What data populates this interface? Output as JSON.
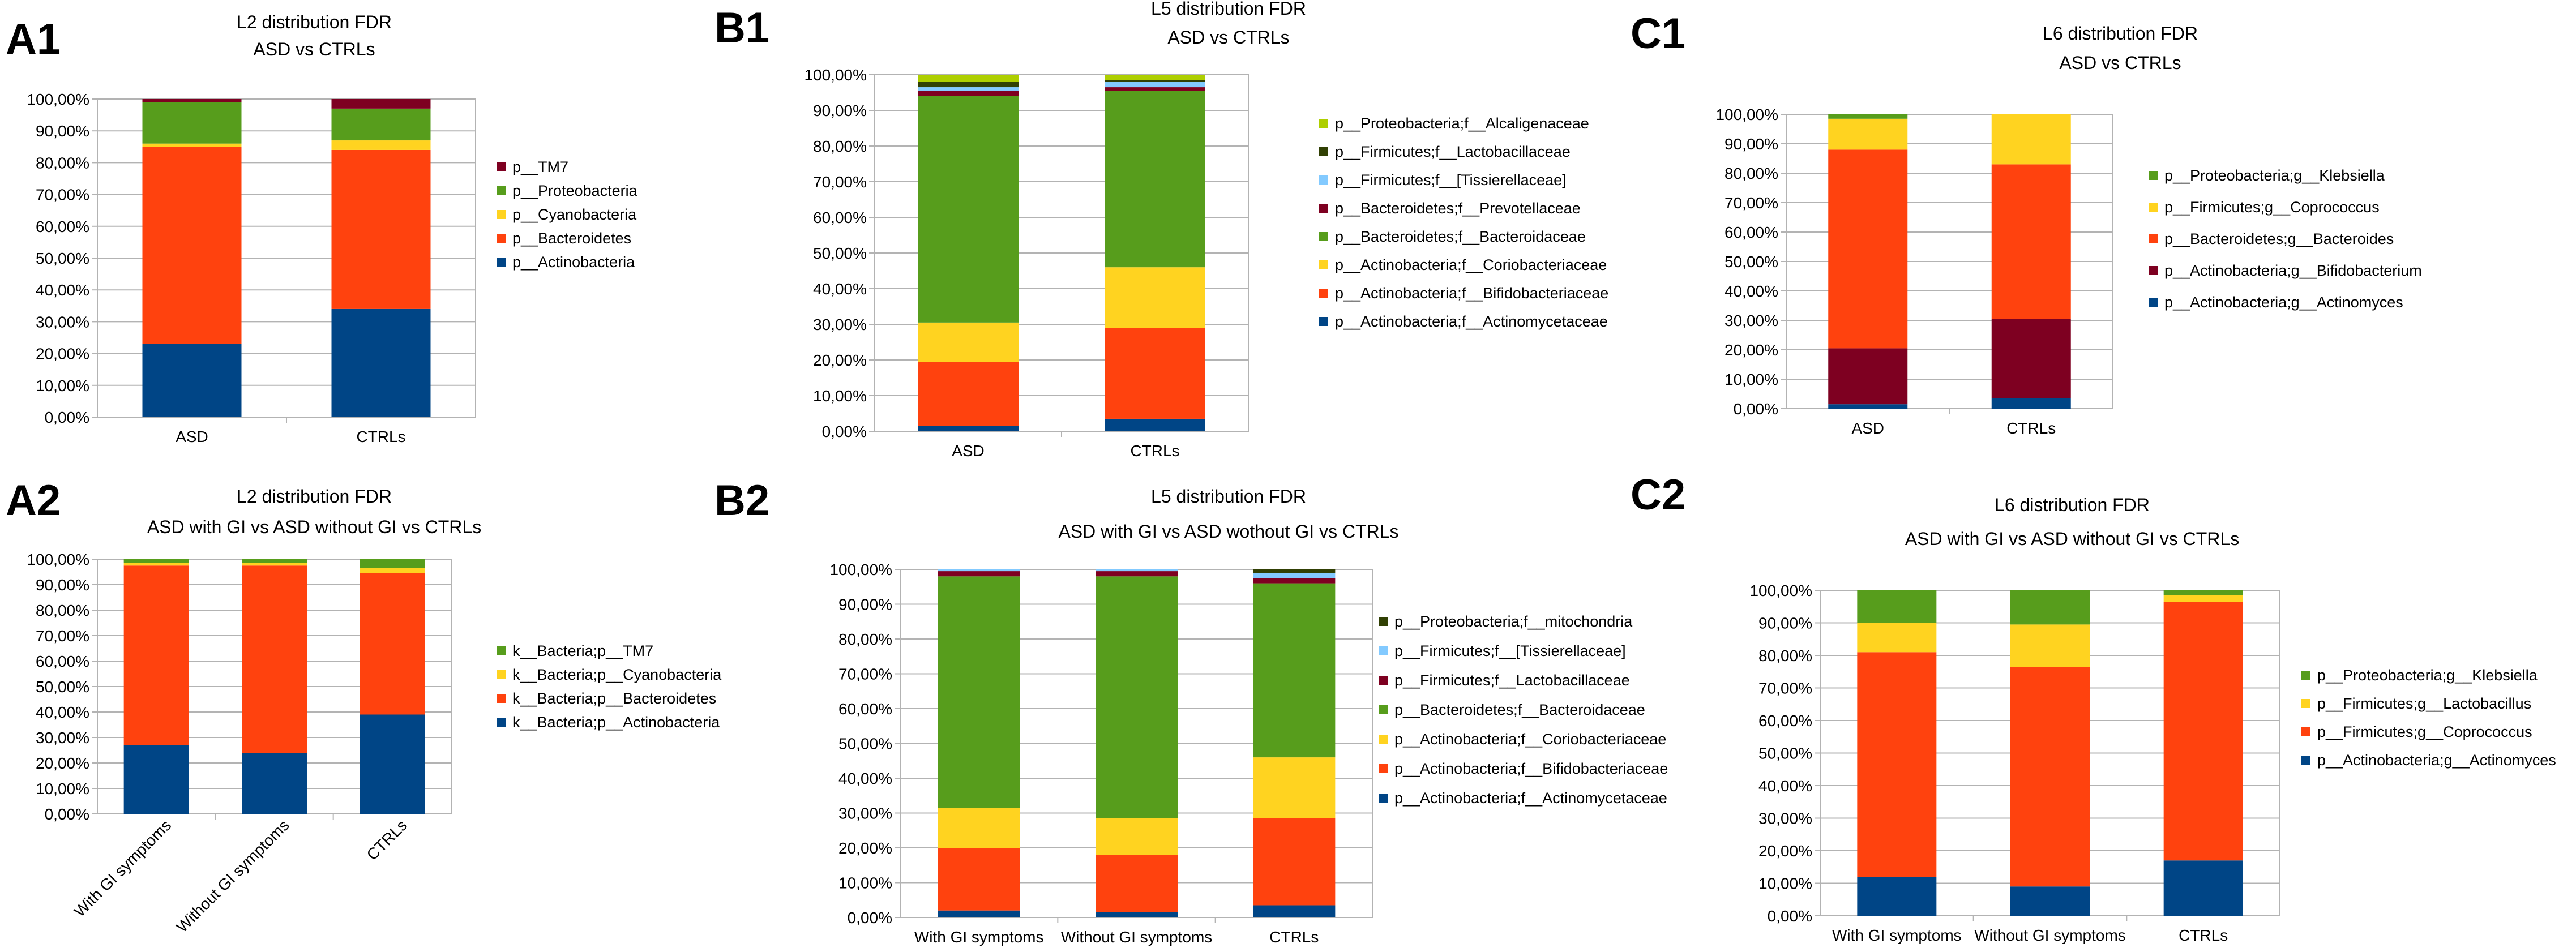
{
  "palette": {
    "grid": "#b3b3b3",
    "axis": "#b3b3b3"
  },
  "chart_data": [
    {
      "panel": "A1",
      "type": "bar",
      "stacked": true,
      "title": "L2 distribution FDR",
      "subtitle": "ASD vs CTRLs",
      "categories": [
        "ASD",
        "CTRLs"
      ],
      "yticks": [
        "0,00%",
        "10,00%",
        "20,00%",
        "30,00%",
        "40,00%",
        "50,00%",
        "60,00%",
        "70,00%",
        "80,00%",
        "90,00%",
        "100,00%"
      ],
      "ylim": [
        0,
        100
      ],
      "xlabel_rotated": false,
      "series": [
        {
          "name": "p__Actinobacteria",
          "color": "#004586",
          "values": [
            23,
            34
          ]
        },
        {
          "name": "p__Bacteroidetes",
          "color": "#ff420e",
          "values": [
            62,
            50
          ]
        },
        {
          "name": "p__Cyanobacteria",
          "color": "#ffd320",
          "values": [
            1,
            3
          ]
        },
        {
          "name": "p__Proteobacteria",
          "color": "#579d1c",
          "values": [
            13,
            10
          ]
        },
        {
          "name": "p__TM7",
          "color": "#7e0021",
          "values": [
            1,
            3
          ]
        }
      ]
    },
    {
      "panel": "B1",
      "type": "bar",
      "stacked": true,
      "title": "L5 distribution FDR",
      "subtitle": "ASD vs CTRLs",
      "categories": [
        "ASD",
        "CTRLs"
      ],
      "yticks": [
        "0,00%",
        "10,00%",
        "20,00%",
        "30,00%",
        "40,00%",
        "50,00%",
        "60,00%",
        "70,00%",
        "80,00%",
        "90,00%",
        "100,00%"
      ],
      "ylim": [
        0,
        100
      ],
      "xlabel_rotated": false,
      "series": [
        {
          "name": "p__Actinobacteria;f__Actinomycetaceae",
          "color": "#004586",
          "values": [
            1.5,
            3.5
          ]
        },
        {
          "name": "p__Actinobacteria;f__Bifidobacteriaceae",
          "color": "#ff420e",
          "values": [
            18,
            25.5
          ]
        },
        {
          "name": "p__Actinobacteria;f__Coriobacteriaceae",
          "color": "#ffd320",
          "values": [
            11,
            17
          ]
        },
        {
          "name": "p__Bacteroidetes;f__Bacteroidaceae",
          "color": "#579d1c",
          "values": [
            63.5,
            49.5
          ]
        },
        {
          "name": "p__Bacteroidetes;f__Prevotellaceae",
          "color": "#7e0021",
          "values": [
            1.5,
            1
          ]
        },
        {
          "name": "p__Firmicutes;f__[Tissierellaceae]",
          "color": "#83caff",
          "values": [
            1,
            1.5
          ]
        },
        {
          "name": "p__Firmicutes;f__Lactobacillaceae",
          "color": "#314004",
          "values": [
            1.5,
            0.5
          ]
        },
        {
          "name": "p__Proteobacteria;f__Alcaligenaceae",
          "color": "#aecf00",
          "values": [
            2,
            1.5
          ]
        }
      ]
    },
    {
      "panel": "C1",
      "type": "bar",
      "stacked": true,
      "title": "L6 distribution FDR",
      "subtitle": "ASD vs CTRLs",
      "categories": [
        "ASD",
        "CTRLs"
      ],
      "yticks": [
        "0,00%",
        "10,00%",
        "20,00%",
        "30,00%",
        "40,00%",
        "50,00%",
        "60,00%",
        "70,00%",
        "80,00%",
        "90,00%",
        "100,00%"
      ],
      "ylim": [
        0,
        100
      ],
      "xlabel_rotated": false,
      "series": [
        {
          "name": "p__Actinobacteria;g__Actinomyces",
          "color": "#004586",
          "values": [
            1.5,
            3.5
          ]
        },
        {
          "name": "p__Actinobacteria;g__Bifidobacterium",
          "color": "#7e0021",
          "values": [
            19,
            27
          ]
        },
        {
          "name": "p__Bacteroidetes;g__Bacteroides",
          "color": "#ff420e",
          "values": [
            67.5,
            52.5
          ]
        },
        {
          "name": "p__Firmicutes;g__Coprococcus",
          "color": "#ffd320",
          "values": [
            10.5,
            17
          ]
        },
        {
          "name": "p__Proteobacteria;g__Klebsiella",
          "color": "#579d1c",
          "values": [
            1.5,
            0
          ]
        }
      ]
    },
    {
      "panel": "A2",
      "type": "bar",
      "stacked": true,
      "title": "L2 distribution FDR",
      "subtitle": "ASD with GI vs ASD without GI vs CTRLs",
      "categories": [
        "With GI symptoms",
        "Without GI symptoms",
        "CTRLs"
      ],
      "yticks": [
        "0,00%",
        "10,00%",
        "20,00%",
        "30,00%",
        "40,00%",
        "50,00%",
        "60,00%",
        "70,00%",
        "80,00%",
        "90,00%",
        "100,00%"
      ],
      "ylim": [
        0,
        100
      ],
      "xlabel_rotated": true,
      "series": [
        {
          "name": "k__Bacteria;p__Actinobacteria",
          "color": "#004586",
          "values": [
            27,
            24,
            39
          ]
        },
        {
          "name": "k__Bacteria;p__Bacteroidetes",
          "color": "#ff420e",
          "values": [
            70.5,
            73.5,
            55.5
          ]
        },
        {
          "name": "k__Bacteria;p__Cyanobacteria",
          "color": "#ffd320",
          "values": [
            1,
            1,
            2
          ]
        },
        {
          "name": "k__Bacteria;p__TM7",
          "color": "#579d1c",
          "values": [
            1.5,
            1.5,
            3.5
          ]
        }
      ]
    },
    {
      "panel": "B2",
      "type": "bar",
      "stacked": true,
      "title": "L5 distribution FDR",
      "subtitle": "ASD with GI vs ASD wothout GI vs CTRLs",
      "categories": [
        "With GI symptoms",
        "Without GI symptoms",
        "CTRLs"
      ],
      "yticks": [
        "0,00%",
        "10,00%",
        "20,00%",
        "30,00%",
        "40,00%",
        "50,00%",
        "60,00%",
        "70,00%",
        "80,00%",
        "90,00%",
        "100,00%"
      ],
      "ylim": [
        0,
        100
      ],
      "xlabel_rotated": false,
      "series": [
        {
          "name": "p__Actinobacteria;f__Actinomycetaceae",
          "color": "#004586",
          "values": [
            2,
            1.5,
            3.5
          ]
        },
        {
          "name": "p__Actinobacteria;f__Bifidobacteriaceae",
          "color": "#ff420e",
          "values": [
            18,
            16.5,
            25
          ]
        },
        {
          "name": "p__Actinobacteria;f__Coriobacteriaceae",
          "color": "#ffd320",
          "values": [
            11.5,
            10.5,
            17.5
          ]
        },
        {
          "name": "p__Bacteroidetes;f__Bacteroidaceae",
          "color": "#579d1c",
          "values": [
            66.5,
            69.5,
            50
          ]
        },
        {
          "name": "p__Firmicutes;f__Lactobacillaceae",
          "color": "#7e0021",
          "values": [
            1.5,
            1.5,
            1.5
          ]
        },
        {
          "name": "p__Firmicutes;f__[Tissierellaceae]",
          "color": "#83caff",
          "values": [
            0.5,
            0.5,
            1.5
          ]
        },
        {
          "name": "p__Proteobacteria;f__mitochondria",
          "color": "#314004",
          "values": [
            0,
            0,
            1
          ]
        }
      ]
    },
    {
      "panel": "C2",
      "type": "bar",
      "stacked": true,
      "title": "L6 distribution FDR",
      "subtitle": "ASD with GI vs ASD without GI vs CTRLs",
      "categories": [
        "With GI symptoms",
        "Without GI symptoms",
        "CTRLs"
      ],
      "yticks": [
        "0,00%",
        "10,00%",
        "20,00%",
        "30,00%",
        "40,00%",
        "50,00%",
        "60,00%",
        "70,00%",
        "80,00%",
        "90,00%",
        "100,00%"
      ],
      "ylim": [
        0,
        100
      ],
      "xlabel_rotated": false,
      "series": [
        {
          "name": "p__Actinobacteria;g__Actinomyces",
          "color": "#004586",
          "values": [
            12,
            9,
            17
          ]
        },
        {
          "name": "p__Firmicutes;g__Coprococcus",
          "color": "#ff420e",
          "values": [
            69,
            67.5,
            79.5
          ]
        },
        {
          "name": "p__Firmicutes;g__Lactobacillus",
          "color": "#ffd320",
          "values": [
            9,
            13,
            2
          ]
        },
        {
          "name": "p__Proteobacteria;g__Klebsiella",
          "color": "#579d1c",
          "values": [
            10,
            10.5,
            1.5
          ]
        }
      ]
    }
  ]
}
